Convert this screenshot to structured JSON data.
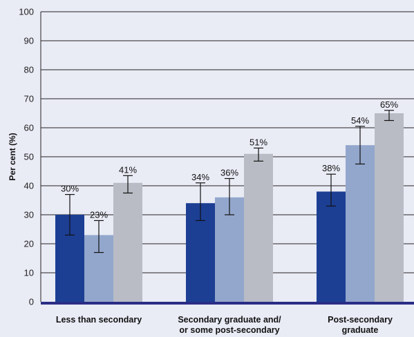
{
  "chart_data": {
    "type": "bar",
    "ylabel": "Per cent (%)",
    "ylim": [
      0,
      100
    ],
    "yticks": [
      "0",
      "10",
      "20",
      "30",
      "40",
      "50",
      "60",
      "70",
      "80",
      "90",
      "100"
    ],
    "categories": [
      [
        "Less than secondary"
      ],
      [
        "Secondary graduate and/",
        "or some post-secondary"
      ],
      [
        "Post-secondary",
        "graduate"
      ]
    ],
    "series": [
      {
        "color": "#1c3f94",
        "values": [
          30,
          34,
          38
        ],
        "labels": [
          "30%",
          "34%",
          "38%"
        ],
        "err_low": [
          23,
          28,
          33
        ],
        "err_high": [
          37,
          41,
          44
        ]
      },
      {
        "color": "#93a7cc",
        "values": [
          23,
          36,
          54
        ],
        "labels": [
          "23%",
          "36%",
          "54%"
        ],
        "err_low": [
          17,
          30,
          47.5
        ],
        "err_high": [
          28,
          42.5,
          60.5
        ]
      },
      {
        "color": "#b9bcc4",
        "values": [
          41,
          51,
          65
        ],
        "labels": [
          "41%",
          "51%",
          "65%"
        ],
        "err_low": [
          37.5,
          48.5,
          62.5
        ],
        "err_high": [
          43.5,
          53,
          66
        ]
      }
    ],
    "grid": true,
    "legend": "none"
  }
}
